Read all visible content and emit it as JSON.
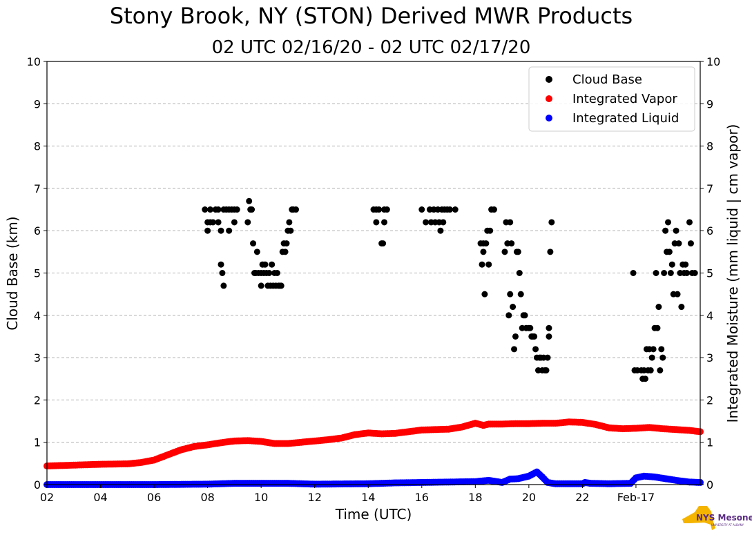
{
  "chart_data": {
    "type": "scatter",
    "title": "Stony Brook, NY (STON) Derived MWR Products",
    "subtitle": "02 UTC 02/16/20 - 02 UTC 02/17/20",
    "xlabel": "Time (UTC)",
    "ylabel": "Cloud Base (km)",
    "ylabel_right": "Integrated Moisture (mm liquid | cm vapor)",
    "xlim": [
      2,
      26.4
    ],
    "ylim": [
      0,
      10
    ],
    "x_ticks": [
      {
        "x": 2,
        "label": "02"
      },
      {
        "x": 4,
        "label": "04"
      },
      {
        "x": 6,
        "label": "06"
      },
      {
        "x": 8,
        "label": "08"
      },
      {
        "x": 10,
        "label": "10"
      },
      {
        "x": 12,
        "label": "12"
      },
      {
        "x": 14,
        "label": "14"
      },
      {
        "x": 16,
        "label": "16"
      },
      {
        "x": 18,
        "label": "18"
      },
      {
        "x": 20,
        "label": "20"
      },
      {
        "x": 22,
        "label": "22"
      },
      {
        "x": 24,
        "label": "Feb-17"
      }
    ],
    "y_ticks": [
      "0",
      "1",
      "2",
      "3",
      "4",
      "5",
      "6",
      "7",
      "8",
      "9",
      "10"
    ],
    "grid": true,
    "legend_position": "top-right",
    "series": [
      {
        "name": "Cloud Base",
        "color": "#000000",
        "points": [
          [
            7.9,
            6.5
          ],
          [
            8.0,
            6.2
          ],
          [
            8.0,
            6.0
          ],
          [
            8.1,
            6.5
          ],
          [
            8.1,
            6.2
          ],
          [
            8.2,
            6.2
          ],
          [
            8.3,
            6.5
          ],
          [
            8.4,
            6.5
          ],
          [
            8.4,
            6.2
          ],
          [
            8.5,
            6.0
          ],
          [
            8.5,
            5.2
          ],
          [
            8.55,
            5.0
          ],
          [
            8.6,
            4.7
          ],
          [
            8.6,
            6.5
          ],
          [
            8.7,
            6.5
          ],
          [
            8.8,
            6.5
          ],
          [
            8.8,
            6.0
          ],
          [
            8.9,
            6.5
          ],
          [
            9.0,
            6.5
          ],
          [
            9.0,
            6.2
          ],
          [
            9.1,
            6.5
          ],
          [
            9.5,
            6.2
          ],
          [
            9.55,
            6.7
          ],
          [
            9.6,
            6.5
          ],
          [
            9.65,
            6.5
          ],
          [
            9.7,
            5.7
          ],
          [
            9.75,
            5.0
          ],
          [
            9.8,
            5.0
          ],
          [
            9.85,
            5.5
          ],
          [
            9.9,
            5.0
          ],
          [
            10.0,
            5.0
          ],
          [
            10.0,
            4.7
          ],
          [
            10.05,
            5.2
          ],
          [
            10.1,
            5.0
          ],
          [
            10.15,
            5.2
          ],
          [
            10.2,
            5.0
          ],
          [
            10.25,
            4.7
          ],
          [
            10.3,
            5.0
          ],
          [
            10.35,
            4.7
          ],
          [
            10.4,
            5.2
          ],
          [
            10.45,
            4.7
          ],
          [
            10.5,
            5.0
          ],
          [
            10.55,
            4.7
          ],
          [
            10.6,
            5.0
          ],
          [
            10.65,
            4.7
          ],
          [
            10.7,
            4.7
          ],
          [
            10.75,
            4.7
          ],
          [
            10.8,
            5.5
          ],
          [
            10.85,
            5.7
          ],
          [
            10.9,
            5.5
          ],
          [
            10.95,
            5.7
          ],
          [
            11.0,
            6.0
          ],
          [
            11.05,
            6.2
          ],
          [
            11.1,
            6.0
          ],
          [
            11.15,
            6.5
          ],
          [
            11.2,
            6.5
          ],
          [
            11.3,
            6.5
          ],
          [
            14.2,
            6.5
          ],
          [
            14.3,
            6.5
          ],
          [
            14.3,
            6.2
          ],
          [
            14.4,
            6.5
          ],
          [
            14.5,
            5.7
          ],
          [
            14.55,
            5.7
          ],
          [
            14.6,
            6.5
          ],
          [
            14.6,
            6.2
          ],
          [
            14.7,
            6.5
          ],
          [
            16.0,
            6.5
          ],
          [
            16.15,
            6.2
          ],
          [
            16.3,
            6.5
          ],
          [
            16.35,
            6.2
          ],
          [
            16.45,
            6.5
          ],
          [
            16.5,
            6.2
          ],
          [
            16.6,
            6.5
          ],
          [
            16.65,
            6.2
          ],
          [
            16.7,
            6.0
          ],
          [
            16.75,
            6.5
          ],
          [
            16.8,
            6.2
          ],
          [
            16.85,
            6.5
          ],
          [
            16.95,
            6.5
          ],
          [
            17.05,
            6.5
          ],
          [
            17.25,
            6.5
          ],
          [
            18.2,
            5.7
          ],
          [
            18.25,
            5.2
          ],
          [
            18.3,
            5.7
          ],
          [
            18.3,
            5.5
          ],
          [
            18.35,
            4.5
          ],
          [
            18.4,
            5.7
          ],
          [
            18.45,
            6.0
          ],
          [
            18.5,
            5.2
          ],
          [
            18.55,
            6.0
          ],
          [
            18.6,
            6.5
          ],
          [
            18.7,
            6.5
          ],
          [
            19.1,
            5.5
          ],
          [
            19.15,
            6.2
          ],
          [
            19.2,
            5.7
          ],
          [
            19.25,
            4.0
          ],
          [
            19.3,
            4.5
          ],
          [
            19.3,
            6.2
          ],
          [
            19.35,
            5.7
          ],
          [
            19.4,
            4.2
          ],
          [
            19.45,
            3.2
          ],
          [
            19.5,
            3.5
          ],
          [
            19.55,
            5.5
          ],
          [
            19.6,
            5.5
          ],
          [
            19.65,
            5.0
          ],
          [
            19.7,
            4.5
          ],
          [
            19.75,
            3.7
          ],
          [
            19.8,
            4.0
          ],
          [
            19.85,
            4.0
          ],
          [
            19.9,
            3.7
          ],
          [
            20.0,
            3.7
          ],
          [
            20.05,
            3.7
          ],
          [
            20.1,
            3.5
          ],
          [
            20.15,
            3.5
          ],
          [
            20.2,
            3.5
          ],
          [
            20.25,
            3.2
          ],
          [
            20.3,
            3.0
          ],
          [
            20.35,
            2.7
          ],
          [
            20.4,
            3.0
          ],
          [
            20.45,
            3.0
          ],
          [
            20.5,
            2.7
          ],
          [
            20.55,
            3.0
          ],
          [
            20.6,
            2.7
          ],
          [
            20.65,
            2.7
          ],
          [
            20.7,
            3.0
          ],
          [
            20.75,
            3.5
          ],
          [
            20.75,
            3.7
          ],
          [
            20.8,
            5.5
          ],
          [
            20.85,
            6.2
          ],
          [
            23.9,
            5.0
          ],
          [
            23.95,
            2.7
          ],
          [
            24.05,
            2.7
          ],
          [
            24.2,
            2.7
          ],
          [
            24.25,
            2.5
          ],
          [
            24.3,
            2.7
          ],
          [
            24.35,
            2.5
          ],
          [
            24.4,
            3.2
          ],
          [
            24.45,
            2.7
          ],
          [
            24.5,
            3.2
          ],
          [
            24.55,
            2.7
          ],
          [
            24.6,
            3.0
          ],
          [
            24.65,
            3.2
          ],
          [
            24.7,
            3.7
          ],
          [
            24.75,
            5.0
          ],
          [
            24.8,
            3.7
          ],
          [
            24.85,
            4.2
          ],
          [
            24.9,
            2.7
          ],
          [
            24.95,
            3.2
          ],
          [
            25.0,
            3.0
          ],
          [
            25.05,
            5.0
          ],
          [
            25.1,
            6.0
          ],
          [
            25.15,
            5.5
          ],
          [
            25.2,
            6.2
          ],
          [
            25.25,
            5.5
          ],
          [
            25.3,
            5.0
          ],
          [
            25.35,
            5.2
          ],
          [
            25.4,
            4.5
          ],
          [
            25.45,
            5.7
          ],
          [
            25.5,
            6.0
          ],
          [
            25.55,
            4.5
          ],
          [
            25.6,
            5.7
          ],
          [
            25.65,
            5.0
          ],
          [
            25.7,
            4.2
          ],
          [
            25.75,
            5.2
          ],
          [
            25.8,
            5.0
          ],
          [
            25.85,
            5.2
          ],
          [
            25.9,
            5.0
          ],
          [
            26.0,
            6.2
          ],
          [
            26.05,
            5.7
          ],
          [
            26.1,
            5.0
          ],
          [
            26.2,
            5.0
          ]
        ]
      },
      {
        "name": "Integrated Vapor",
        "color": "#ff0000",
        "points": [
          [
            2.0,
            0.44
          ],
          [
            3.0,
            0.46
          ],
          [
            4.0,
            0.48
          ],
          [
            5.0,
            0.49
          ],
          [
            5.5,
            0.52
          ],
          [
            6.0,
            0.58
          ],
          [
            6.5,
            0.7
          ],
          [
            7.0,
            0.82
          ],
          [
            7.5,
            0.9
          ],
          [
            8.0,
            0.94
          ],
          [
            8.5,
            0.99
          ],
          [
            9.0,
            1.03
          ],
          [
            9.5,
            1.04
          ],
          [
            10.0,
            1.02
          ],
          [
            10.5,
            0.97
          ],
          [
            11.0,
            0.97
          ],
          [
            11.5,
            1.0
          ],
          [
            12.0,
            1.03
          ],
          [
            12.5,
            1.06
          ],
          [
            13.0,
            1.1
          ],
          [
            13.5,
            1.18
          ],
          [
            14.0,
            1.22
          ],
          [
            14.5,
            1.2
          ],
          [
            15.0,
            1.21
          ],
          [
            15.5,
            1.25
          ],
          [
            16.0,
            1.29
          ],
          [
            16.5,
            1.3
          ],
          [
            17.0,
            1.31
          ],
          [
            17.5,
            1.36
          ],
          [
            18.0,
            1.45
          ],
          [
            18.3,
            1.4
          ],
          [
            18.5,
            1.43
          ],
          [
            19.0,
            1.43
          ],
          [
            19.5,
            1.44
          ],
          [
            20.0,
            1.44
          ],
          [
            20.5,
            1.45
          ],
          [
            21.0,
            1.45
          ],
          [
            21.5,
            1.48
          ],
          [
            22.0,
            1.47
          ],
          [
            22.5,
            1.42
          ],
          [
            23.0,
            1.34
          ],
          [
            23.5,
            1.32
          ],
          [
            24.0,
            1.33
          ],
          [
            24.5,
            1.35
          ],
          [
            25.0,
            1.32
          ],
          [
            25.5,
            1.3
          ],
          [
            26.0,
            1.28
          ],
          [
            26.4,
            1.25
          ]
        ]
      },
      {
        "name": "Integrated Liquid",
        "color": "#0000ff",
        "points": [
          [
            2.0,
            0.0
          ],
          [
            6.0,
            0.0
          ],
          [
            8.0,
            0.01
          ],
          [
            9.0,
            0.03
          ],
          [
            10.0,
            0.03
          ],
          [
            11.0,
            0.03
          ],
          [
            12.0,
            0.01
          ],
          [
            14.0,
            0.02
          ],
          [
            15.0,
            0.04
          ],
          [
            16.0,
            0.05
          ],
          [
            17.0,
            0.06
          ],
          [
            18.0,
            0.07
          ],
          [
            18.5,
            0.1
          ],
          [
            19.0,
            0.05
          ],
          [
            19.3,
            0.13
          ],
          [
            19.6,
            0.14
          ],
          [
            20.0,
            0.2
          ],
          [
            20.3,
            0.3
          ],
          [
            20.5,
            0.18
          ],
          [
            20.7,
            0.05
          ],
          [
            21.0,
            0.02
          ],
          [
            22.0,
            0.02
          ],
          [
            22.1,
            0.05
          ],
          [
            22.3,
            0.03
          ],
          [
            23.0,
            0.02
          ],
          [
            23.8,
            0.03
          ],
          [
            24.0,
            0.16
          ],
          [
            24.3,
            0.2
          ],
          [
            24.7,
            0.18
          ],
          [
            25.0,
            0.15
          ],
          [
            25.5,
            0.1
          ],
          [
            26.0,
            0.06
          ],
          [
            26.4,
            0.05
          ]
        ]
      }
    ]
  },
  "logo": {
    "text": "NYS Mesonet",
    "sub": "UNIVERSITY AT ALBANY"
  }
}
